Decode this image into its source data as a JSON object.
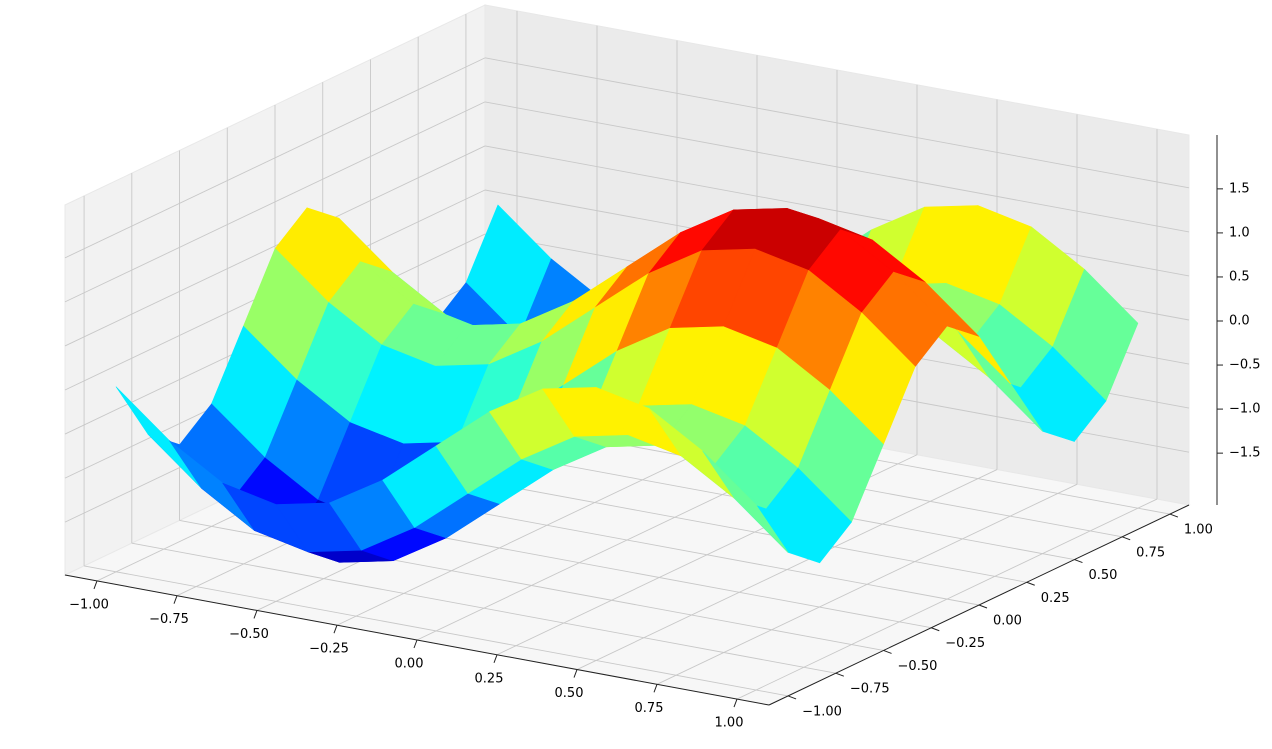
{
  "chart_data": {
    "type": "surface",
    "x": [
      -1,
      -0.833,
      -0.667,
      -0.5,
      -0.333,
      -0.167,
      0,
      0.167,
      0.333,
      0.5,
      0.667,
      0.833,
      1
    ],
    "y": [
      -1,
      -0.833,
      -0.667,
      -0.5,
      -0.333,
      -0.167,
      0,
      0.167,
      0.333,
      0.5,
      0.667,
      0.833,
      1
    ],
    "z": [
      [
        0,
        -0.5,
        -0.87,
        -1,
        -0.87,
        -0.5,
        0,
        0.5,
        0.87,
        1,
        0.87,
        0.5,
        0
      ],
      [
        -0.71,
        -1.21,
        -1.58,
        -1.71,
        -1.58,
        -1.21,
        -0.71,
        -0.21,
        0.16,
        0.29,
        0.16,
        -0.21,
        -0.71
      ],
      [
        -1,
        -1.5,
        -1.87,
        -2,
        -1.87,
        -1.5,
        -1,
        -0.5,
        -0.13,
        0,
        -0.13,
        -0.5,
        -1
      ],
      [
        -0.71,
        -1.21,
        -1.58,
        -1.71,
        -1.58,
        -1.21,
        -0.71,
        -0.21,
        0.16,
        0.29,
        0.16,
        -0.21,
        -0.71
      ],
      [
        0,
        -0.5,
        -0.87,
        -1,
        -0.87,
        -0.5,
        0,
        0.5,
        0.87,
        1,
        0.87,
        0.5,
        0
      ],
      [
        0.71,
        0.21,
        -0.16,
        -0.29,
        -0.16,
        0.21,
        0.71,
        1.21,
        1.58,
        1.71,
        1.58,
        1.21,
        0.71
      ],
      [
        1,
        0.5,
        0.13,
        0,
        0.13,
        0.5,
        1,
        1.5,
        1.87,
        2,
        1.87,
        1.5,
        1
      ],
      [
        0.71,
        0.21,
        -0.16,
        -0.29,
        -0.16,
        0.21,
        0.71,
        1.21,
        1.58,
        1.71,
        1.58,
        1.21,
        0.71
      ],
      [
        0,
        -0.5,
        -0.87,
        -1,
        -0.87,
        -0.5,
        0,
        0.5,
        0.87,
        1,
        0.87,
        0.5,
        0
      ],
      [
        -0.71,
        -1.21,
        -1.58,
        -1.71,
        -1.58,
        -1.21,
        -0.71,
        -0.21,
        0.16,
        0.29,
        0.16,
        -0.21,
        -0.71
      ],
      [
        -1,
        -1.5,
        -1.87,
        -2,
        -1.87,
        -1.5,
        -1,
        -0.5,
        -0.13,
        0,
        -0.13,
        -0.5,
        -1
      ],
      [
        -0.71,
        -1.21,
        -1.58,
        -1.71,
        -1.58,
        -1.21,
        -0.71,
        -0.21,
        0.16,
        0.29,
        0.16,
        -0.21,
        -0.71
      ],
      [
        0,
        -0.5,
        -0.87,
        -1,
        -0.87,
        -0.5,
        0,
        0.5,
        0.87,
        1,
        0.87,
        0.5,
        0
      ]
    ],
    "colormap": "jet",
    "xlim": [
      -1.1,
      1.1
    ],
    "ylim": [
      -1.1,
      1.1
    ],
    "zlim": [
      -2.1,
      2.1
    ],
    "xticks": [
      {
        "value": -1,
        "label": "−1.00"
      },
      {
        "value": -0.75,
        "label": "−0.75"
      },
      {
        "value": -0.5,
        "label": "−0.50"
      },
      {
        "value": -0.25,
        "label": "−0.25"
      },
      {
        "value": 0,
        "label": "0.00"
      },
      0.25,
      {
        "value": 0.5,
        "label": "0.50"
      },
      0.75,
      {
        "value": 1,
        "label": "1.00"
      }
    ],
    "yticks": [
      {
        "value": -1,
        "label": "−1.00"
      },
      {
        "value": -0.75,
        "label": "−0.75"
      },
      {
        "value": -0.5,
        "label": "−0.50"
      },
      {
        "value": -0.25,
        "label": "−0.25"
      },
      {
        "value": 0,
        "label": "0.00"
      },
      0.25,
      {
        "value": 0.5,
        "label": "0.50"
      },
      0.75,
      {
        "value": 1,
        "label": "1.00"
      }
    ],
    "zticks": [
      {
        "value": -1.5,
        "label": "−1.5"
      },
      {
        "value": -1,
        "label": "−1.0"
      },
      {
        "value": -0.5,
        "label": "−0.5"
      },
      {
        "value": 0,
        "label": "0.0"
      },
      0.5,
      {
        "value": 1,
        "label": "1.0"
      },
      1.5
    ],
    "grid": true
  }
}
